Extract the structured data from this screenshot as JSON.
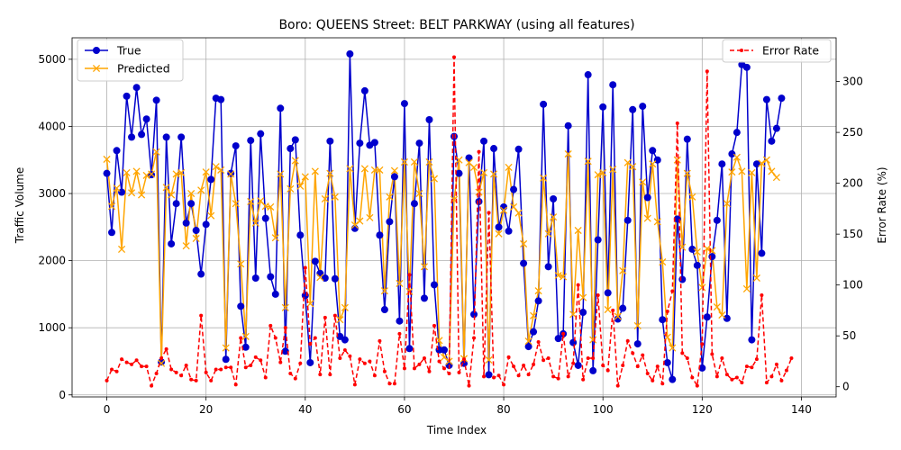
{
  "chart_data": {
    "type": "line",
    "title": "Boro: QUEENS Street: BELT PARKWAY (using all features)",
    "xlabel": "Time Index",
    "ylabel_left": "Traffic Volume",
    "ylabel_right": "Error Rate (%)",
    "xlim": [
      -7,
      147
    ],
    "ylim_left": [
      -30,
      5320
    ],
    "ylim_right": [
      -10,
      343
    ],
    "x_ticks": [
      0,
      20,
      40,
      60,
      80,
      100,
      120,
      140
    ],
    "y_left_ticks": [
      0,
      1000,
      2000,
      3000,
      4000,
      5000
    ],
    "y_right_ticks": [
      0,
      50,
      100,
      150,
      200,
      250,
      300
    ],
    "grid": true,
    "legend_left": "top-left",
    "legend_right": "top-right",
    "colors": {
      "true": "#0000cc",
      "predicted": "#ffa500",
      "error": "#ff0000"
    },
    "series": [
      {
        "name": "True",
        "values": [
          3300,
          2420,
          3640,
          3020,
          4450,
          3840,
          4580,
          3880,
          4110,
          3280,
          4390,
          490,
          3840,
          2250,
          2850,
          3840,
          2560,
          2850,
          2450,
          1800,
          2540,
          3210,
          4420,
          4400,
          530,
          3300,
          3710,
          1320,
          710,
          3790,
          1740,
          3890,
          2630,
          1760,
          1500,
          4270,
          650,
          3670,
          3800,
          2380,
          1480,
          480,
          1990,
          1810,
          1740,
          3780,
          1730,
          870,
          820,
          5080,
          2480,
          3750,
          4530,
          3720,
          3760,
          2380,
          1270,
          2580,
          3250,
          1100,
          4340,
          690,
          2850,
          3750,
          1440,
          4100,
          1640,
          670,
          670,
          440,
          3850,
          3300,
          470,
          3530,
          1200,
          2880,
          3780,
          300,
          3670,
          2500,
          2800,
          2440,
          3060,
          3660,
          1960,
          720,
          940,
          1400,
          4330,
          1910,
          2920,
          840,
          910,
          4010,
          780,
          440,
          1230,
          4770,
          360,
          2310,
          4290,
          1520,
          4620,
          1130,
          1290,
          2600,
          4250,
          760,
          4300,
          2940,
          3640,
          3500,
          1120,
          480,
          230,
          2620,
          1720,
          3810,
          2170,
          1930,
          400,
          1160,
          2060,
          2600,
          3440,
          1140,
          3590,
          3910,
          4920,
          4880,
          820,
          3440,
          2110,
          4400,
          3780,
          3970,
          4420
        ]
      },
      {
        "name": "Predicted",
        "values": [
          3510,
          2810,
          3080,
          2170,
          3310,
          3010,
          3330,
          2980,
          3270,
          3290,
          3620,
          470,
          3090,
          2980,
          3290,
          3310,
          2220,
          3000,
          2330,
          3050,
          3320,
          2670,
          3400,
          3350,
          700,
          3290,
          2850,
          1950,
          870,
          2880,
          2560,
          2890,
          2810,
          2800,
          2340,
          3290,
          1300,
          3070,
          3490,
          3110,
          3250,
          1360,
          3330,
          1750,
          2920,
          3300,
          2950,
          1120,
          1300,
          3370,
          2530,
          2590,
          3370,
          2640,
          3350,
          3350,
          1550,
          2950,
          3340,
          1660,
          3470,
          1540,
          3470,
          3000,
          1910,
          3470,
          3220,
          810,
          560,
          500,
          2910,
          3500,
          540,
          3460,
          3390,
          3020,
          3310,
          520,
          3290,
          2400,
          2750,
          3390,
          2800,
          2710,
          2250,
          800,
          1180,
          1550,
          3230,
          2400,
          2650,
          1780,
          1760,
          3590,
          1200,
          2450,
          1450,
          3480,
          820,
          3280,
          3310,
          1270,
          3360,
          1170,
          1850,
          3460,
          3400,
          1030,
          3170,
          2630,
          3440,
          2580,
          1980,
          860,
          700,
          3500,
          2200,
          3300,
          2950,
          2130,
          1600,
          2180,
          2150,
          1310,
          1190,
          2850,
          3320,
          3540,
          3330,
          1580,
          3310,
          1740,
          3450,
          3500,
          3330,
          3240
        ]
      },
      {
        "name": "Error Rate",
        "values": [
          6,
          17,
          15,
          27,
          24,
          22,
          26,
          20,
          20,
          1,
          13,
          28,
          37,
          17,
          14,
          11,
          21,
          7,
          6,
          70,
          14,
          6,
          17,
          17,
          19,
          19,
          2,
          48,
          19,
          21,
          29,
          26,
          9,
          60,
          48,
          24,
          58,
          13,
          8,
          23,
          117,
          42,
          48,
          12,
          68,
          12,
          70,
          28,
          36,
          30,
          2,
          27,
          23,
          25,
          11,
          45,
          15,
          3,
          3,
          52,
          18,
          110,
          18,
          22,
          28,
          15,
          60,
          25,
          18,
          13,
          324,
          14,
          27,
          1,
          48,
          231,
          10,
          171,
          9,
          11,
          2,
          29,
          20,
          11,
          21,
          12,
          22,
          44,
          26,
          28,
          10,
          8,
          52,
          10,
          23,
          100,
          7,
          28,
          28,
          90,
          21,
          16,
          75,
          1,
          21,
          45,
          33,
          20,
          31,
          13,
          6,
          20,
          3,
          74,
          94,
          259,
          33,
          28,
          9,
          1,
          42,
          310,
          32,
          10,
          28,
          12,
          7,
          9,
          4,
          20,
          19,
          27,
          90,
          4,
          10,
          22,
          6,
          16,
          28
        ]
      }
    ]
  }
}
